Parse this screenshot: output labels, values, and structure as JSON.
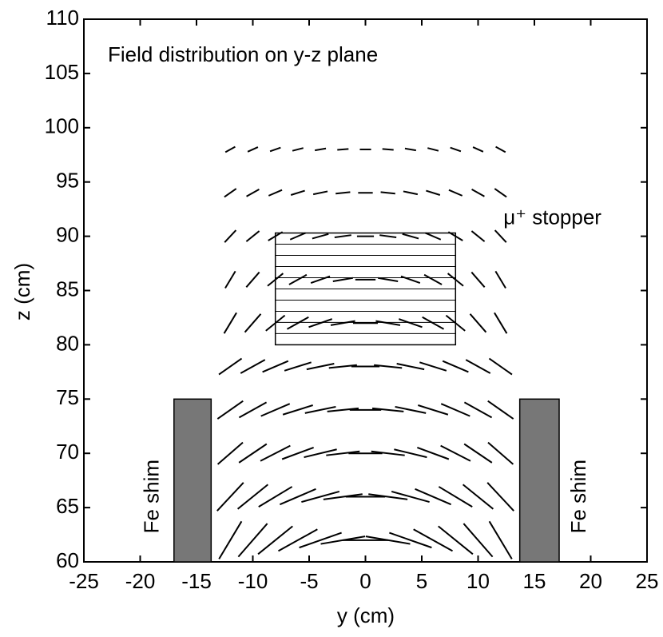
{
  "chart_data": {
    "type": "quiver",
    "title": "Field distribution on y-z plane",
    "x_label": "y  (cm)",
    "y_label": "z  (cm)",
    "xlim": [
      -25,
      25
    ],
    "xticks": [
      -25,
      -20,
      -15,
      -10,
      -5,
      0,
      5,
      10,
      15,
      20,
      25
    ],
    "ylim": [
      60,
      110
    ],
    "yticks": [
      60,
      65,
      70,
      75,
      80,
      85,
      90,
      95,
      100,
      105,
      110
    ],
    "color": "#000000",
    "field": {
      "y": [
        -12,
        -10,
        -8,
        -6,
        -4,
        -2,
        0,
        2,
        4,
        6,
        8,
        10,
        12
      ],
      "rows": [
        {
          "z": 62,
          "magnitude": 4,
          "angles": [
            60,
            50,
            40,
            30,
            20,
            10,
            0,
            -10,
            -20,
            -30,
            -40,
            -50,
            -60
          ]
        },
        {
          "z": 66,
          "magnitude": 3.5,
          "angles": [
            48,
            40,
            32,
            24,
            16,
            8,
            0,
            -8,
            -16,
            -24,
            -32,
            -40,
            -48
          ]
        },
        {
          "z": 70,
          "magnitude": 3,
          "angles": [
            42,
            35,
            28,
            21,
            14,
            7,
            0,
            -7,
            -14,
            -21,
            -28,
            -35,
            -42
          ]
        },
        {
          "z": 74,
          "magnitude": 2.8,
          "angles": [
            36,
            30,
            24,
            18,
            12,
            6,
            0,
            -6,
            -12,
            -18,
            -24,
            -30,
            -36
          ]
        },
        {
          "z": 78,
          "magnitude": 2.5,
          "angles": [
            36,
            30,
            24,
            18,
            12,
            6,
            0,
            -6,
            -12,
            -18,
            -24,
            -30,
            -36
          ]
        },
        {
          "z": 82,
          "magnitude": 2.2,
          "angles": [
            60,
            50,
            40,
            30,
            20,
            10,
            0,
            -10,
            -20,
            -30,
            -40,
            -50,
            -60
          ]
        },
        {
          "z": 86,
          "magnitude": 1.8,
          "angles": [
            60,
            50,
            40,
            30,
            20,
            10,
            0,
            -10,
            -20,
            -30,
            -40,
            -50,
            -60
          ]
        },
        {
          "z": 90,
          "magnitude": 1.5,
          "angles": [
            48,
            40,
            32,
            24,
            16,
            8,
            0,
            -8,
            -16,
            -24,
            -32,
            -40,
            -48
          ]
        },
        {
          "z": 94,
          "magnitude": 1.3,
          "angles": [
            36,
            30,
            24,
            18,
            12,
            6,
            0,
            -6,
            -12,
            -18,
            -24,
            -30,
            -36
          ]
        },
        {
          "z": 98,
          "magnitude": 1,
          "angles": [
            30,
            25,
            20,
            15,
            10,
            5,
            0,
            -5,
            -10,
            -15,
            -20,
            -25,
            -30
          ]
        }
      ]
    },
    "shapes": [
      {
        "label": "Fe shim",
        "y": [
          -17,
          -13.7
        ],
        "z": [
          60,
          75
        ],
        "fill": "#777777"
      },
      {
        "label": "Fe shim",
        "y": [
          13.7,
          17.2
        ],
        "z": [
          60,
          75
        ],
        "fill": "#777777"
      },
      {
        "label": "μ⁺ stopper",
        "y": [
          -8,
          8
        ],
        "z": [
          80,
          90.3
        ],
        "fill": "none"
      }
    ]
  }
}
